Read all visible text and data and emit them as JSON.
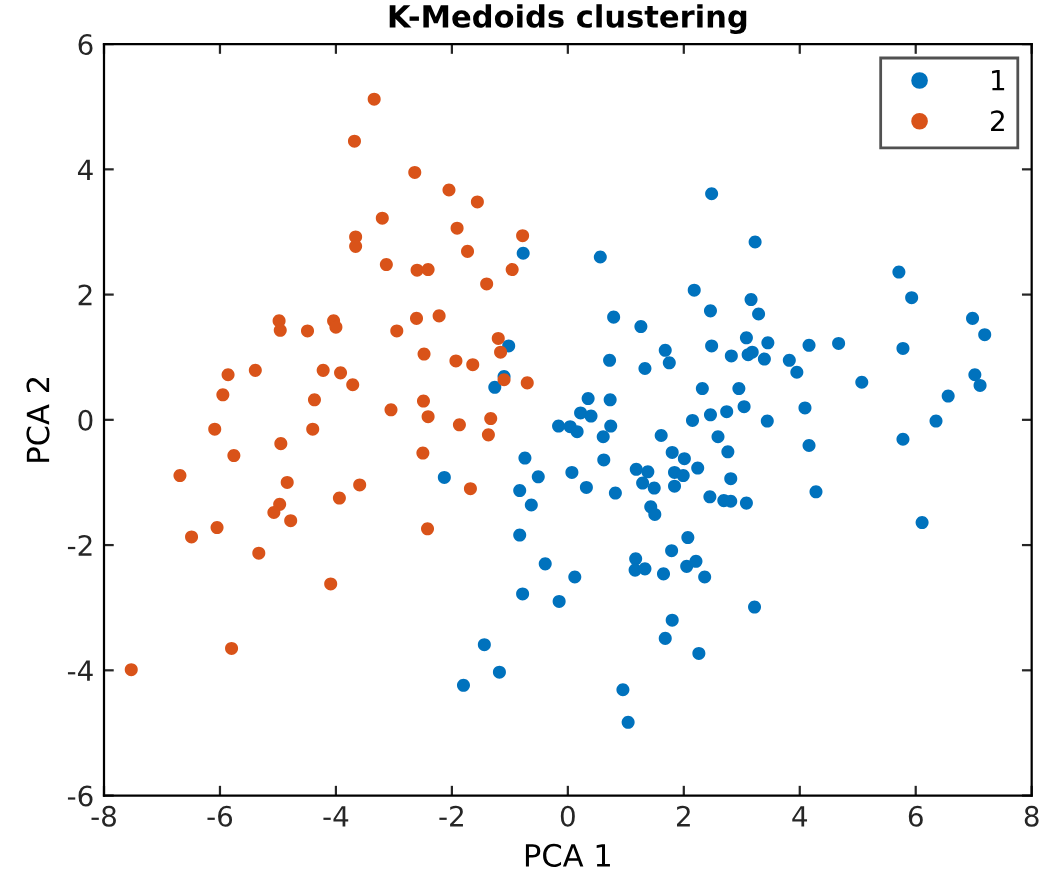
{
  "chart_data": {
    "type": "scatter",
    "title": "K-Medoids clustering",
    "xlabel": "PCA 1",
    "ylabel": "PCA 2",
    "xlim": [
      -8,
      8
    ],
    "ylim": [
      -6,
      6
    ],
    "xticks": [
      -8,
      -6,
      -4,
      -2,
      0,
      2,
      4,
      6,
      8
    ],
    "yticks": [
      -6,
      -4,
      -2,
      0,
      2,
      4,
      6
    ],
    "grid": false,
    "legend": "top right",
    "marker": "circle",
    "series": [
      {
        "name": "1",
        "color": "#0072bd",
        "x": [
          2.48,
          -0.77,
          0.56,
          2.18,
          2.46,
          0.79,
          1.26,
          -1.02,
          2.48,
          1.68,
          1.75,
          0.72,
          1.33,
          -1.1,
          -1.26,
          2.32,
          0.35,
          0.73,
          2.15,
          2.46,
          0.22,
          0.4,
          -0.16,
          0.04,
          0.16,
          0.74,
          0.61,
          1.61,
          1.8,
          2.01,
          -0.74,
          0.62,
          -2.13,
          -0.51,
          -0.83,
          -0.63,
          0.07,
          0.32,
          0.82,
          1.18,
          1.38,
          1.29,
          1.49,
          1.84,
          1.99,
          1.84,
          2.24,
          2.45,
          1.43,
          1.5,
          -0.83,
          -0.39,
          0.12,
          -0.78,
          -0.15,
          1.17,
          1.16,
          1.33,
          1.79,
          2.07,
          1.65,
          2.05,
          2.21,
          2.36,
          1.8,
          1.68,
          2.26,
          -1.44,
          -1.18,
          -1.8,
          0.95,
          1.04,
          3.23,
          5.71,
          5.93,
          3.16,
          3.29,
          6.98,
          7.19,
          3.08,
          3.45,
          4.16,
          4.67,
          5.78,
          2.82,
          3.11,
          3.18,
          3.39,
          3.82,
          3.95,
          5.07,
          7.02,
          7.11,
          2.95,
          3.04,
          4.09,
          6.56,
          6.35,
          2.74,
          3.44,
          2.59,
          2.76,
          4.16,
          5.78,
          2.81,
          2.69,
          2.81,
          3.08,
          4.28,
          6.11,
          3.22
        ],
        "values": [
          3.61,
          2.66,
          2.6,
          2.07,
          1.74,
          1.64,
          1.49,
          1.18,
          1.18,
          1.11,
          0.91,
          0.95,
          0.82,
          0.69,
          0.52,
          0.5,
          0.34,
          0.32,
          -0.01,
          0.08,
          0.11,
          0.06,
          -0.1,
          -0.11,
          -0.19,
          -0.1,
          -0.27,
          -0.25,
          -0.52,
          -0.62,
          -0.61,
          -0.64,
          -0.92,
          -0.91,
          -1.13,
          -1.36,
          -0.84,
          -1.08,
          -1.17,
          -0.79,
          -0.83,
          -1.01,
          -1.09,
          -0.84,
          -0.89,
          -1.06,
          -0.77,
          -1.23,
          -1.39,
          -1.51,
          -1.84,
          -2.3,
          -2.51,
          -2.78,
          -2.9,
          -2.22,
          -2.4,
          -2.38,
          -2.09,
          -1.88,
          -2.46,
          -2.34,
          -2.26,
          -2.51,
          -3.2,
          -3.49,
          -3.73,
          -3.59,
          -4.03,
          -4.24,
          -4.31,
          -4.83,
          2.84,
          2.36,
          1.95,
          1.92,
          1.69,
          1.62,
          1.36,
          1.31,
          1.23,
          1.19,
          1.22,
          1.14,
          1.02,
          1.04,
          1.08,
          0.97,
          0.95,
          0.76,
          0.6,
          0.72,
          0.55,
          0.5,
          0.21,
          0.19,
          0.38,
          -0.02,
          0.13,
          -0.02,
          -0.27,
          -0.51,
          -0.41,
          -0.31,
          -0.94,
          -1.29,
          -1.3,
          -1.33,
          -1.15,
          -1.64,
          -2.99
        ]
      },
      {
        "name": "2",
        "color": "#d95319",
        "x": [
          -3.34,
          -3.68,
          -2.64,
          -3.2,
          -3.66,
          -3.66,
          -3.13,
          -4.98,
          -4.96,
          -4.49,
          -4.04,
          -4.0,
          -2.95,
          -5.86,
          -5.39,
          -4.22,
          -3.92,
          -3.71,
          -5.95,
          -4.37,
          -3.05,
          -6.09,
          -4.4,
          -4.95,
          -5.76,
          -6.69,
          -4.84,
          -3.59,
          -3.94,
          -4.97,
          -5.07,
          -4.78,
          -6.05,
          -6.49,
          -5.33,
          -4.09,
          -5.8,
          -7.53,
          -2.05,
          -1.56,
          -1.91,
          -0.78,
          -1.73,
          -2.6,
          -2.41,
          -0.96,
          -1.4,
          -2.61,
          -2.22,
          -1.2,
          -1.16,
          -2.48,
          -1.93,
          -1.64,
          -1.1,
          -0.7,
          -2.49,
          -2.41,
          -1.87,
          -1.33,
          -1.37,
          -2.5,
          -1.68,
          -2.42
        ],
        "values": [
          5.12,
          4.45,
          3.95,
          3.22,
          2.92,
          2.77,
          2.48,
          1.58,
          1.43,
          1.42,
          1.58,
          1.48,
          1.42,
          0.72,
          0.79,
          0.79,
          0.75,
          0.56,
          0.4,
          0.32,
          0.16,
          -0.15,
          -0.15,
          -0.38,
          -0.57,
          -0.89,
          -1.0,
          -1.04,
          -1.25,
          -1.35,
          -1.48,
          -1.61,
          -1.72,
          -1.87,
          -2.13,
          -2.62,
          -3.65,
          -3.99,
          3.67,
          3.48,
          3.06,
          2.94,
          2.69,
          2.39,
          2.4,
          2.4,
          2.17,
          1.62,
          1.66,
          1.3,
          1.08,
          1.05,
          0.94,
          0.88,
          0.64,
          0.59,
          0.3,
          0.05,
          -0.08,
          0.02,
          -0.24,
          -0.53,
          -1.1,
          -1.74
        ]
      }
    ]
  }
}
